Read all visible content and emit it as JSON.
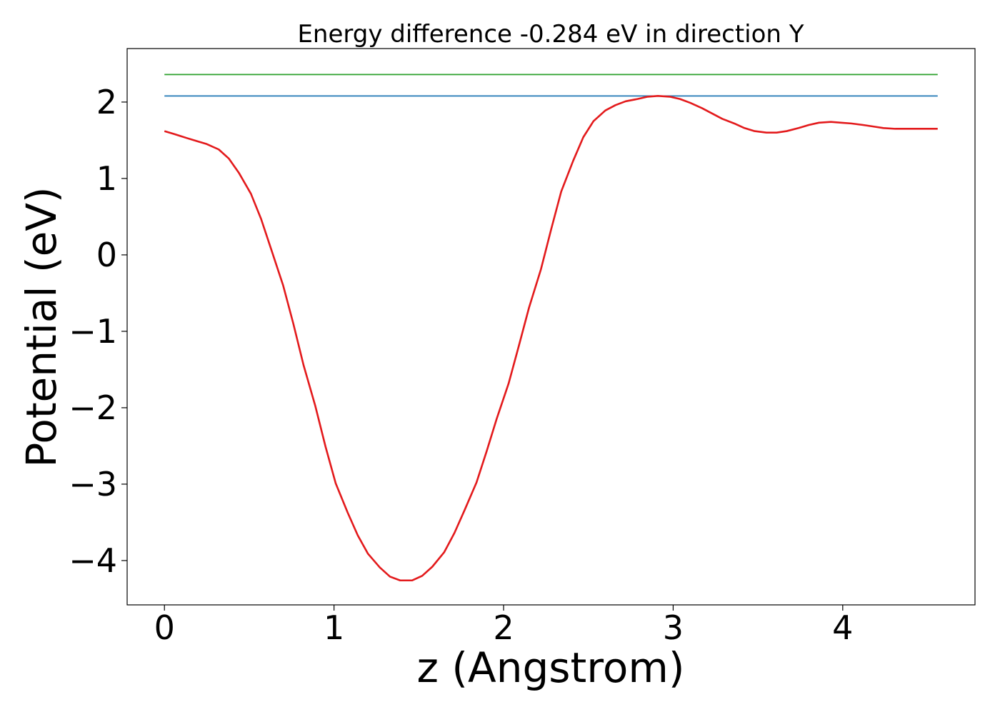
{
  "chart_data": {
    "type": "line",
    "title": "Energy difference -0.284 eV in direction Y",
    "xlabel": "z (Angstrom)",
    "ylabel": "Potential (eV)",
    "xlim": [
      -0.22,
      4.78
    ],
    "ylim": [
      -4.58,
      2.7
    ],
    "grid": false,
    "x_ticks": [
      0,
      1,
      2,
      3,
      4
    ],
    "x_tick_labels": [
      "0",
      "1",
      "2",
      "3",
      "4"
    ],
    "y_ticks": [
      2,
      1,
      0,
      -1,
      -2,
      -3,
      -4
    ],
    "y_tick_labels": [
      "2",
      "1",
      "0",
      "−1",
      "−2",
      "−3",
      "−4"
    ],
    "series": [
      {
        "color": "#2ca02c",
        "x": [
          0,
          4.56
        ],
        "y": [
          2.36,
          2.36
        ]
      },
      {
        "color": "#1f77b4",
        "x": [
          0,
          4.56
        ],
        "y": [
          2.08,
          2.08
        ]
      },
      {
        "color": "#e31a1c",
        "x": [
          0,
          0.06,
          0.13,
          0.19,
          0.25,
          0.32,
          0.38,
          0.44,
          0.51,
          0.57,
          0.63,
          0.7,
          0.76,
          0.82,
          0.89,
          0.95,
          1.01,
          1.08,
          1.14,
          1.2,
          1.27,
          1.33,
          1.39,
          1.46,
          1.52,
          1.58,
          1.65,
          1.71,
          1.77,
          1.84,
          1.9,
          1.96,
          2.03,
          2.09,
          2.15,
          2.22,
          2.28,
          2.34,
          2.41,
          2.47,
          2.53,
          2.6,
          2.66,
          2.72,
          2.79,
          2.85,
          2.91,
          2.98,
          3.04,
          3.1,
          3.17,
          3.23,
          3.29,
          3.36,
          3.42,
          3.48,
          3.55,
          3.61,
          3.67,
          3.74,
          3.8,
          3.86,
          3.93,
          3.99,
          4.05,
          4.12,
          4.18,
          4.24,
          4.31,
          4.37,
          4.43,
          4.5,
          4.56
        ],
        "y": [
          1.62,
          1.58,
          1.53,
          1.49,
          1.45,
          1.38,
          1.26,
          1.07,
          0.8,
          0.47,
          0.07,
          -0.4,
          -0.9,
          -1.44,
          -1.98,
          -2.51,
          -2.99,
          -3.37,
          -3.67,
          -3.91,
          -4.09,
          -4.21,
          -4.26,
          -4.26,
          -4.2,
          -4.08,
          -3.89,
          -3.64,
          -3.34,
          -2.98,
          -2.57,
          -2.14,
          -1.68,
          -1.19,
          -0.69,
          -0.19,
          0.33,
          0.83,
          1.23,
          1.54,
          1.75,
          1.89,
          1.96,
          2.01,
          2.04,
          2.07,
          2.08,
          2.07,
          2.04,
          1.99,
          1.92,
          1.85,
          1.78,
          1.72,
          1.66,
          1.62,
          1.6,
          1.6,
          1.62,
          1.66,
          1.7,
          1.73,
          1.74,
          1.73,
          1.72,
          1.7,
          1.68,
          1.66,
          1.65,
          1.65,
          1.65,
          1.65,
          1.65
        ]
      }
    ]
  }
}
